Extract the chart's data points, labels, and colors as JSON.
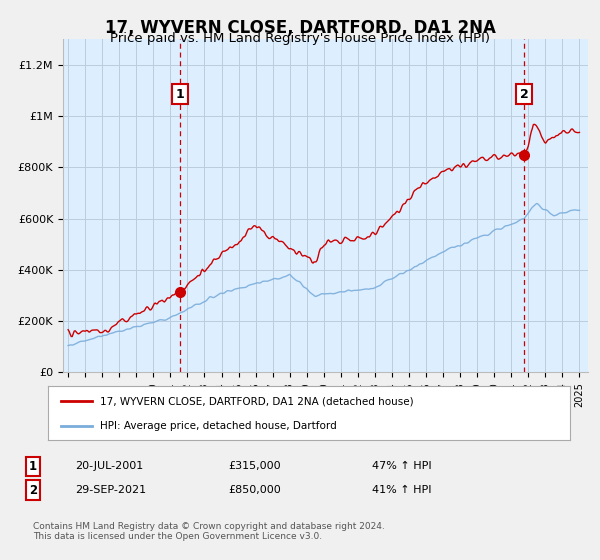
{
  "title": "17, WYVERN CLOSE, DARTFORD, DA1 2NA",
  "subtitle": "Price paid vs. HM Land Registry's House Price Index (HPI)",
  "title_fontsize": 12,
  "subtitle_fontsize": 9.5,
  "ylim": [
    0,
    1300000
  ],
  "yticks": [
    0,
    200000,
    400000,
    600000,
    800000,
    1000000,
    1200000
  ],
  "ytick_labels": [
    "£0",
    "£200K",
    "£400K",
    "£600K",
    "£800K",
    "£1M",
    "£1.2M"
  ],
  "sale1_x": 2001.55,
  "sale1_y": 315000,
  "sale1_label": "1",
  "sale2_x": 2021.75,
  "sale2_y": 850000,
  "sale2_label": "2",
  "vline1_x": 2001.55,
  "vline2_x": 2021.75,
  "red_color": "#cc0000",
  "blue_color": "#7aaddb",
  "fill_color": "#ddeeff",
  "legend_label_red": "17, WYVERN CLOSE, DARTFORD, DA1 2NA (detached house)",
  "legend_label_blue": "HPI: Average price, detached house, Dartford",
  "sale1_date": "20-JUL-2001",
  "sale1_price": "£315,000",
  "sale1_hpi": "47% ↑ HPI",
  "sale2_date": "29-SEP-2021",
  "sale2_price": "£850,000",
  "sale2_hpi": "41% ↑ HPI",
  "footer": "Contains HM Land Registry data © Crown copyright and database right 2024.\nThis data is licensed under the Open Government Licence v3.0.",
  "background_color": "#f0f0f0",
  "plot_bg_color": "#ddeeff",
  "grid_color": "#bbccdd",
  "xlim_left": 1994.7,
  "xlim_right": 2025.5
}
